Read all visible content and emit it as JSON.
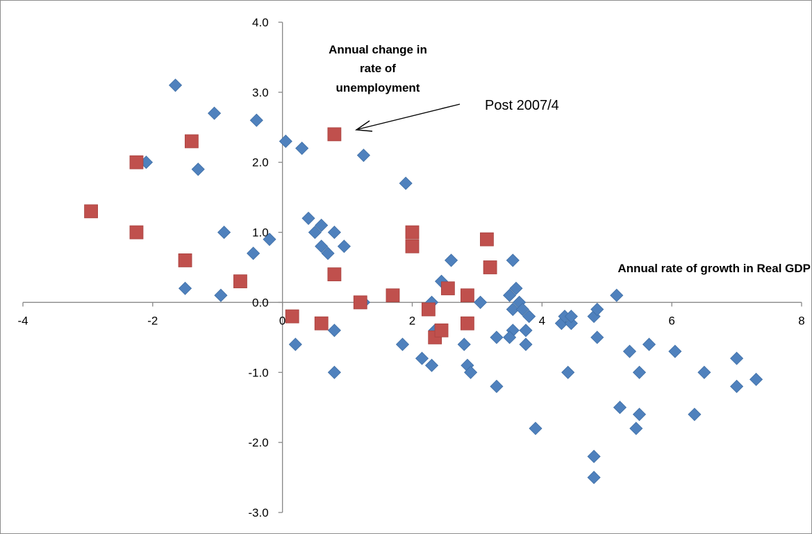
{
  "chart_data": {
    "type": "scatter",
    "xlim": [
      -4,
      8
    ],
    "ylim": [
      -3,
      4
    ],
    "x_ticks": [
      "-4",
      "-2",
      "0",
      "2",
      "4",
      "6",
      "8"
    ],
    "y_ticks": [
      "4.0",
      "3.0",
      "2.0",
      "1.0",
      "0.0",
      "-1.0",
      "-2.0",
      "-3.0"
    ],
    "xlabel": "Annual rate of growth in Real GDP",
    "ylabel": "Annual change in rate of unemployment",
    "annotation": "Post 2007/4",
    "grid": false,
    "colors": {
      "series_1": "#4f81bd",
      "series_2": "#c0504d"
    },
    "series": [
      {
        "marker": "diamond",
        "points": [
          [
            -1.65,
            3.1
          ],
          [
            -1.05,
            2.7
          ],
          [
            -0.4,
            2.6
          ],
          [
            -1.3,
            1.9
          ],
          [
            -2.1,
            2.0
          ],
          [
            0.05,
            2.3
          ],
          [
            0.3,
            2.2
          ],
          [
            1.25,
            2.1
          ],
          [
            1.9,
            1.7
          ],
          [
            0.4,
            1.2
          ],
          [
            0.6,
            1.1
          ],
          [
            0.5,
            1.0
          ],
          [
            0.8,
            1.0
          ],
          [
            -0.9,
            1.0
          ],
          [
            -0.2,
            0.9
          ],
          [
            0.6,
            0.8
          ],
          [
            0.95,
            0.8
          ],
          [
            0.7,
            0.7
          ],
          [
            -0.45,
            0.7
          ],
          [
            -1.5,
            0.2
          ],
          [
            -0.95,
            0.1
          ],
          [
            0.2,
            -0.6
          ],
          [
            0.8,
            -0.4
          ],
          [
            0.8,
            -1.0
          ],
          [
            1.25,
            0.0
          ],
          [
            1.85,
            -0.6
          ],
          [
            2.15,
            -0.8
          ],
          [
            2.3,
            -0.9
          ],
          [
            2.3,
            0.0
          ],
          [
            2.35,
            -0.4
          ],
          [
            2.45,
            0.3
          ],
          [
            2.6,
            0.6
          ],
          [
            2.8,
            -0.6
          ],
          [
            2.85,
            -0.9
          ],
          [
            2.9,
            -1.0
          ],
          [
            3.05,
            0.0
          ],
          [
            3.3,
            -0.5
          ],
          [
            3.3,
            -1.2
          ],
          [
            3.5,
            0.1
          ],
          [
            3.55,
            0.6
          ],
          [
            3.6,
            0.2
          ],
          [
            3.55,
            -0.1
          ],
          [
            3.55,
            -0.4
          ],
          [
            3.5,
            -0.5
          ],
          [
            3.65,
            0.0
          ],
          [
            3.7,
            -0.1
          ],
          [
            3.75,
            -0.4
          ],
          [
            3.75,
            -0.6
          ],
          [
            3.8,
            -0.2
          ],
          [
            3.9,
            -1.8
          ],
          [
            4.3,
            -0.3
          ],
          [
            4.35,
            -0.2
          ],
          [
            4.45,
            -0.3
          ],
          [
            4.45,
            -0.2
          ],
          [
            4.4,
            -1.0
          ],
          [
            4.8,
            -0.2
          ],
          [
            4.85,
            -0.1
          ],
          [
            4.85,
            -0.5
          ],
          [
            4.8,
            -2.2
          ],
          [
            4.8,
            -2.5
          ],
          [
            5.15,
            0.1
          ],
          [
            5.2,
            -1.5
          ],
          [
            5.35,
            -0.7
          ],
          [
            5.45,
            -1.8
          ],
          [
            5.5,
            -1.0
          ],
          [
            5.5,
            -1.6
          ],
          [
            5.65,
            -0.6
          ],
          [
            6.05,
            -0.7
          ],
          [
            6.35,
            -1.6
          ],
          [
            6.5,
            -1.0
          ],
          [
            7.0,
            -0.8
          ],
          [
            7.0,
            -1.2
          ],
          [
            7.3,
            -1.1
          ]
        ]
      },
      {
        "marker": "square",
        "points": [
          [
            -2.95,
            1.3
          ],
          [
            -2.25,
            2.0
          ],
          [
            -2.25,
            1.0
          ],
          [
            -1.5,
            0.6
          ],
          [
            -1.4,
            2.3
          ],
          [
            -0.65,
            0.3
          ],
          [
            0.15,
            -0.2
          ],
          [
            0.6,
            -0.3
          ],
          [
            0.8,
            2.4
          ],
          [
            0.8,
            0.4
          ],
          [
            1.2,
            0.0
          ],
          [
            1.7,
            0.1
          ],
          [
            2.0,
            1.0
          ],
          [
            2.0,
            0.8
          ],
          [
            2.25,
            -0.1
          ],
          [
            2.35,
            -0.5
          ],
          [
            2.45,
            -0.4
          ],
          [
            2.55,
            0.2
          ],
          [
            2.85,
            0.1
          ],
          [
            2.85,
            -0.3
          ],
          [
            3.15,
            0.9
          ],
          [
            3.2,
            0.5
          ]
        ]
      }
    ]
  }
}
